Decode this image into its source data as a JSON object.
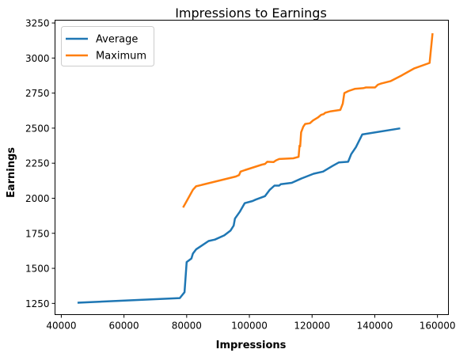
{
  "chart_data": {
    "type": "line",
    "title": "Impressions to Earnings",
    "xlabel": "Impressions",
    "ylabel": "Earnings",
    "xlim": [
      38000,
      163500
    ],
    "ylim": [
      1170,
      3270
    ],
    "xticks": [
      40000,
      60000,
      80000,
      100000,
      120000,
      140000,
      160000
    ],
    "yticks": [
      1250,
      1500,
      1750,
      2000,
      2250,
      2500,
      2750,
      3000,
      3250
    ],
    "grid": false,
    "legend_position": "top-left",
    "series": [
      {
        "name": "Average",
        "color": "#1f77b4",
        "points": [
          [
            45500,
            1255
          ],
          [
            77800,
            1288
          ],
          [
            79300,
            1330
          ],
          [
            80000,
            1545
          ],
          [
            81500,
            1570
          ],
          [
            82000,
            1605
          ],
          [
            83000,
            1635
          ],
          [
            85000,
            1665
          ],
          [
            87000,
            1695
          ],
          [
            89000,
            1705
          ],
          [
            92000,
            1735
          ],
          [
            94000,
            1770
          ],
          [
            95000,
            1805
          ],
          [
            95400,
            1855
          ],
          [
            97000,
            1905
          ],
          [
            98500,
            1965
          ],
          [
            101000,
            1980
          ],
          [
            102000,
            1990
          ],
          [
            105000,
            2015
          ],
          [
            106500,
            2060
          ],
          [
            108000,
            2090
          ],
          [
            109500,
            2090
          ],
          [
            110000,
            2100
          ],
          [
            113500,
            2110
          ],
          [
            116500,
            2140
          ],
          [
            120500,
            2175
          ],
          [
            123500,
            2190
          ],
          [
            126500,
            2230
          ],
          [
            128500,
            2255
          ],
          [
            131500,
            2260
          ],
          [
            132500,
            2315
          ],
          [
            134000,
            2365
          ],
          [
            136000,
            2455
          ],
          [
            147800,
            2497
          ]
        ]
      },
      {
        "name": "Maximum",
        "color": "#ff7f0e",
        "points": [
          [
            79000,
            1940
          ],
          [
            80500,
            2000
          ],
          [
            82000,
            2060
          ],
          [
            83000,
            2085
          ],
          [
            95700,
            2155
          ],
          [
            96700,
            2165
          ],
          [
            97200,
            2190
          ],
          [
            98500,
            2200
          ],
          [
            104000,
            2240
          ],
          [
            105000,
            2245
          ],
          [
            105700,
            2260
          ],
          [
            107700,
            2258
          ],
          [
            108500,
            2270
          ],
          [
            109500,
            2280
          ],
          [
            114000,
            2285
          ],
          [
            115700,
            2295
          ],
          [
            116000,
            2375
          ],
          [
            116200,
            2370
          ],
          [
            116500,
            2470
          ],
          [
            117200,
            2510
          ],
          [
            117800,
            2530
          ],
          [
            119300,
            2535
          ],
          [
            120300,
            2555
          ],
          [
            121800,
            2575
          ],
          [
            122900,
            2595
          ],
          [
            123700,
            2600
          ],
          [
            124200,
            2610
          ],
          [
            126000,
            2620
          ],
          [
            129000,
            2630
          ],
          [
            129800,
            2675
          ],
          [
            130300,
            2750
          ],
          [
            131600,
            2765
          ],
          [
            133600,
            2780
          ],
          [
            136300,
            2785
          ],
          [
            137200,
            2790
          ],
          [
            138500,
            2790
          ],
          [
            140100,
            2790
          ],
          [
            141000,
            2810
          ],
          [
            142000,
            2818
          ],
          [
            145000,
            2835
          ],
          [
            148500,
            2875
          ],
          [
            152500,
            2925
          ],
          [
            157500,
            2965
          ],
          [
            158400,
            3170
          ]
        ]
      }
    ]
  }
}
